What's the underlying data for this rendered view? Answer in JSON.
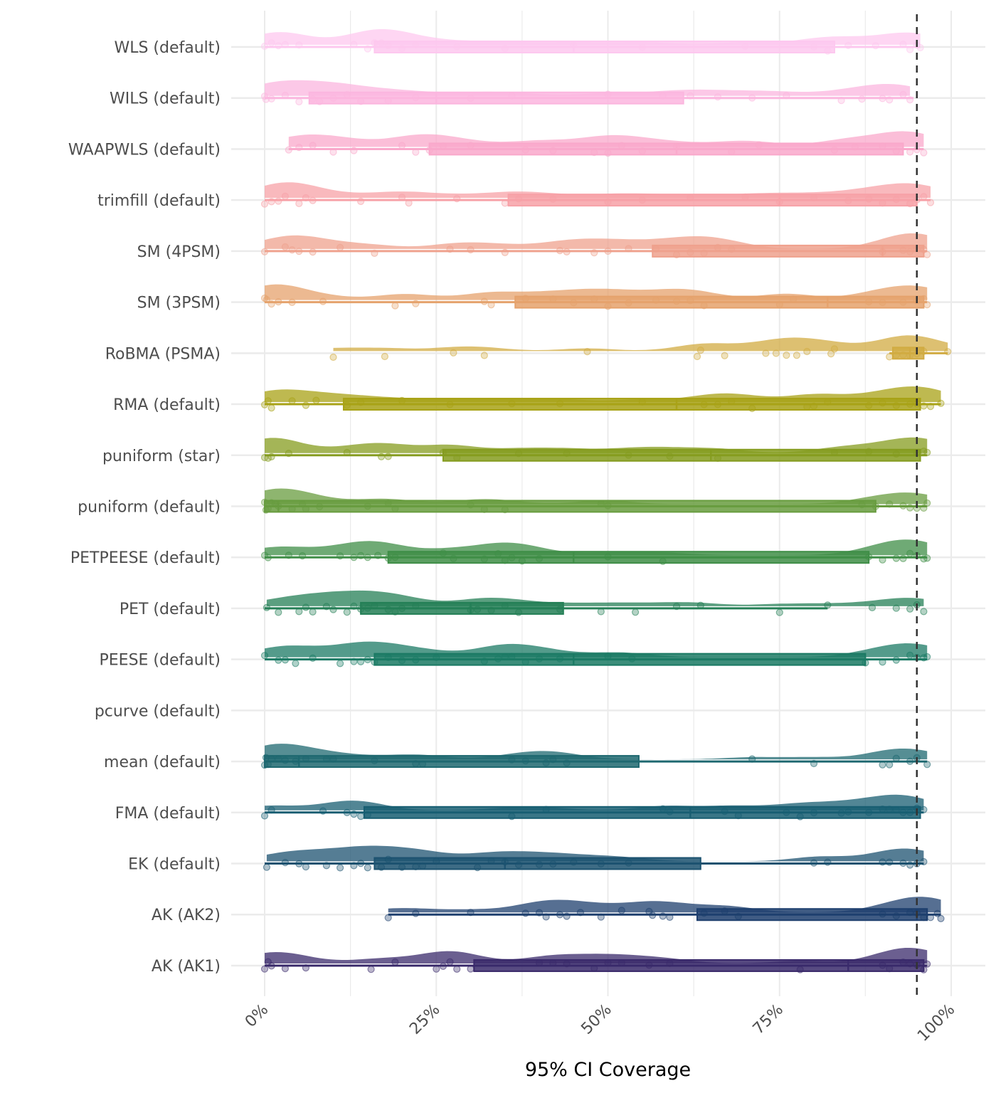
{
  "chart_data": {
    "type": "raincloud",
    "title": "",
    "xlabel": "95% CI Coverage",
    "ylabel": "",
    "xlim": [
      0,
      1
    ],
    "x_ticks": [
      0,
      0.25,
      0.5,
      0.75,
      1.0
    ],
    "x_tick_labels": [
      "0%",
      "25%",
      "50%",
      "75%",
      "100%"
    ],
    "reference_line": {
      "x": 0.95,
      "style": "dashed",
      "color": "#333333"
    },
    "grid": true,
    "legend": "none",
    "categories": [
      "WLS (default)",
      "WILS (default)",
      "WAAPWLS (default)",
      "trimfill (default)",
      "SM (4PSM)",
      "SM (3PSM)",
      "RoBMA (PSMA)",
      "RMA (default)",
      "puniform (star)",
      "puniform (default)",
      "PETPEESE (default)",
      "PET (default)",
      "PEESE (default)",
      "pcurve (default)",
      "mean (default)",
      "FMA (default)",
      "EK (default)",
      "AK (AK2)",
      "AK (AK1)"
    ],
    "series": [
      {
        "name": "WLS (default)",
        "color": "#FDC8EF",
        "min": 0.0,
        "q1": 0.16,
        "median": 0.45,
        "q3": 0.83,
        "max": 0.955,
        "points": [
          0,
          0.01,
          0.02,
          0.03,
          0.05,
          0.13,
          0.15,
          0.16,
          0.17,
          0.18,
          0.2,
          0.22,
          0.28,
          0.35,
          0.45,
          0.55,
          0.7,
          0.8,
          0.82,
          0.85,
          0.89,
          0.93,
          0.94,
          0.95,
          0.955
        ]
      },
      {
        "name": "WILS (default)",
        "color": "#FBB6DF",
        "min": 0.0,
        "q1": 0.065,
        "median": 0.25,
        "q3": 0.61,
        "max": 0.945,
        "points": [
          0,
          0.002,
          0.01,
          0.03,
          0.05,
          0.07,
          0.08,
          0.1,
          0.12,
          0.14,
          0.18,
          0.22,
          0.3,
          0.36,
          0.5,
          0.58,
          0.62,
          0.66,
          0.71,
          0.76,
          0.84,
          0.87,
          0.9,
          0.91,
          0.93,
          0.94
        ]
      },
      {
        "name": "WAAPWLS (default)",
        "color": "#F9A8CB",
        "min": 0.035,
        "q1": 0.24,
        "median": 0.6,
        "q3": 0.93,
        "max": 0.96,
        "points": [
          0.035,
          0.05,
          0.07,
          0.1,
          0.13,
          0.2,
          0.22,
          0.24,
          0.26,
          0.3,
          0.38,
          0.42,
          0.48,
          0.5,
          0.52,
          0.55,
          0.6,
          0.68,
          0.72,
          0.83,
          0.86,
          0.9,
          0.92,
          0.94,
          0.95,
          0.96
        ]
      },
      {
        "name": "trimfill (default)",
        "color": "#F7A1A7",
        "min": 0.0,
        "q1": 0.355,
        "median": 0.75,
        "q3": 0.95,
        "max": 0.97,
        "points": [
          0,
          0.01,
          0.02,
          0.03,
          0.05,
          0.06,
          0.07,
          0.14,
          0.2,
          0.21,
          0.28,
          0.35,
          0.37,
          0.42,
          0.5,
          0.55,
          0.62,
          0.7,
          0.75,
          0.8,
          0.85,
          0.88,
          0.9,
          0.92,
          0.94,
          0.95,
          0.96,
          0.97
        ]
      },
      {
        "name": "SM (4PSM)",
        "color": "#EFA18D",
        "min": 0.0,
        "q1": 0.565,
        "median": 0.9,
        "q3": 0.96,
        "max": 0.965,
        "points": [
          0,
          0.03,
          0.04,
          0.05,
          0.07,
          0.11,
          0.16,
          0.27,
          0.3,
          0.35,
          0.43,
          0.44,
          0.48,
          0.5,
          0.53,
          0.57,
          0.6,
          0.62,
          0.64,
          0.66,
          0.68,
          0.9,
          0.93,
          0.94,
          0.95,
          0.96,
          0.965
        ]
      },
      {
        "name": "SM (3PSM)",
        "color": "#E5A26C",
        "min": 0.0,
        "q1": 0.365,
        "median": 0.82,
        "q3": 0.96,
        "max": 0.965,
        "points": [
          0,
          0.003,
          0.01,
          0.02,
          0.04,
          0.085,
          0.19,
          0.22,
          0.32,
          0.33,
          0.38,
          0.42,
          0.45,
          0.48,
          0.5,
          0.53,
          0.57,
          0.6,
          0.62,
          0.64,
          0.75,
          0.77,
          0.88,
          0.9,
          0.93,
          0.95,
          0.96,
          0.965
        ]
      },
      {
        "name": "RoBMA (PSMA)",
        "color": "#D1AB42",
        "min": 0.91,
        "q1": 0.915,
        "median": 0.94,
        "q3": 0.96,
        "max": 0.995,
        "points": [
          0.1,
          0.175,
          0.275,
          0.32,
          0.47,
          0.63,
          0.635,
          0.67,
          0.73,
          0.745,
          0.76,
          0.775,
          0.79,
          0.825,
          0.83,
          0.91,
          0.92,
          0.93,
          0.94,
          0.95,
          0.96,
          0.995
        ]
      },
      {
        "name": "RMA (default)",
        "color": "#A8A216",
        "min": 0.0,
        "q1": 0.115,
        "median": 0.6,
        "q3": 0.955,
        "max": 0.985,
        "points": [
          0,
          0.005,
          0.01,
          0.04,
          0.06,
          0.075,
          0.12,
          0.14,
          0.2,
          0.27,
          0.36,
          0.43,
          0.55,
          0.64,
          0.66,
          0.68,
          0.71,
          0.79,
          0.8,
          0.82,
          0.88,
          0.9,
          0.92,
          0.94,
          0.95,
          0.96,
          0.97,
          0.985
        ]
      },
      {
        "name": "puniform (star)",
        "color": "#859C1F",
        "min": 0.0,
        "q1": 0.26,
        "median": 0.65,
        "q3": 0.955,
        "max": 0.965,
        "points": [
          0,
          0.005,
          0.01,
          0.035,
          0.12,
          0.17,
          0.18,
          0.26,
          0.28,
          0.37,
          0.44,
          0.53,
          0.59,
          0.66,
          0.83,
          0.88,
          0.92,
          0.95,
          0.96,
          0.965
        ]
      },
      {
        "name": "puniform (default)",
        "color": "#689C3F",
        "min": 0.0,
        "q1": 0.0,
        "median": 0.02,
        "q3": 0.89,
        "max": 0.965,
        "points": [
          0,
          0.002,
          0.005,
          0.01,
          0.015,
          0.02,
          0.04,
          0.055,
          0.06,
          0.08,
          0.15,
          0.18,
          0.19,
          0.3,
          0.32,
          0.35,
          0.49,
          0.5,
          0.87,
          0.89,
          0.91,
          0.93,
          0.94,
          0.95,
          0.96,
          0.965
        ]
      },
      {
        "name": "PETPEESE (default)",
        "color": "#3F8E47",
        "min": 0.0,
        "q1": 0.18,
        "median": 0.45,
        "q3": 0.88,
        "max": 0.965,
        "points": [
          0,
          0.005,
          0.035,
          0.055,
          0.11,
          0.13,
          0.14,
          0.15,
          0.165,
          0.18,
          0.19,
          0.26,
          0.275,
          0.32,
          0.34,
          0.35,
          0.36,
          0.375,
          0.4,
          0.5,
          0.58,
          0.88,
          0.9,
          0.92,
          0.93,
          0.94,
          0.95,
          0.96,
          0.965
        ]
      },
      {
        "name": "PET (default)",
        "color": "#247F56",
        "min": 0.0,
        "q1": 0.14,
        "median": 0.3,
        "q3": 0.435,
        "max": 0.82,
        "points": [
          0.003,
          0.02,
          0.05,
          0.06,
          0.07,
          0.09,
          0.1,
          0.12,
          0.13,
          0.14,
          0.15,
          0.16,
          0.18,
          0.19,
          0.2,
          0.22,
          0.3,
          0.31,
          0.33,
          0.35,
          0.37,
          0.43,
          0.49,
          0.54,
          0.6,
          0.635,
          0.75,
          0.82,
          0.885,
          0.92,
          0.94,
          0.95,
          0.96
        ]
      },
      {
        "name": "PEESE (default)",
        "color": "#1B7A64",
        "min": 0.0,
        "q1": 0.16,
        "median": 0.45,
        "q3": 0.875,
        "max": 0.965,
        "points": [
          0,
          0.02,
          0.03,
          0.045,
          0.07,
          0.11,
          0.13,
          0.14,
          0.15,
          0.16,
          0.18,
          0.2,
          0.22,
          0.25,
          0.32,
          0.34,
          0.35,
          0.36,
          0.38,
          0.4,
          0.43,
          0.5,
          0.535,
          0.875,
          0.9,
          0.92,
          0.94,
          0.95,
          0.96,
          0.965
        ]
      },
      {
        "name": "pcurve (default)",
        "color": "#1A6E6E",
        "min": null,
        "q1": null,
        "median": null,
        "q3": null,
        "max": null,
        "points": []
      },
      {
        "name": "mean (default)",
        "color": "#1E6870",
        "min": 0.0,
        "q1": 0.0,
        "median": 0.05,
        "q3": 0.545,
        "max": 0.965,
        "points": [
          0,
          0.002,
          0.005,
          0.01,
          0.02,
          0.03,
          0.045,
          0.06,
          0.09,
          0.1,
          0.16,
          0.22,
          0.23,
          0.36,
          0.38,
          0.41,
          0.42,
          0.44,
          0.71,
          0.8,
          0.9,
          0.91,
          0.92,
          0.94,
          0.95,
          0.965
        ]
      },
      {
        "name": "FMA (default)",
        "color": "#185E72",
        "min": 0.0,
        "q1": 0.145,
        "median": 0.62,
        "q3": 0.955,
        "max": 0.96,
        "points": [
          0,
          0.01,
          0.085,
          0.12,
          0.13,
          0.14,
          0.15,
          0.36,
          0.41,
          0.58,
          0.59,
          0.67,
          0.69,
          0.76,
          0.78,
          0.8,
          0.84,
          0.85,
          0.88,
          0.9,
          0.91,
          0.92,
          0.93,
          0.94,
          0.95,
          0.96
        ]
      },
      {
        "name": "EK (default)",
        "color": "#1C5270",
        "min": 0.0,
        "q1": 0.16,
        "median": 0.35,
        "q3": 0.635,
        "max": 0.96,
        "points": [
          0.003,
          0.03,
          0.05,
          0.06,
          0.09,
          0.11,
          0.13,
          0.14,
          0.15,
          0.17,
          0.18,
          0.2,
          0.22,
          0.23,
          0.25,
          0.31,
          0.33,
          0.35,
          0.37,
          0.4,
          0.42,
          0.45,
          0.49,
          0.53,
          0.8,
          0.82,
          0.9,
          0.91,
          0.93,
          0.94,
          0.95,
          0.96
        ]
      },
      {
        "name": "AK (AK2)",
        "color": "#1E3F6E",
        "min": 0.18,
        "q1": 0.63,
        "median": 0.95,
        "q3": 0.965,
        "max": 0.985,
        "points": [
          0.18,
          0.22,
          0.3,
          0.38,
          0.4,
          0.41,
          0.43,
          0.44,
          0.46,
          0.49,
          0.52,
          0.56,
          0.565,
          0.58,
          0.59,
          0.64,
          0.67,
          0.69,
          0.9,
          0.92,
          0.94,
          0.95,
          0.96,
          0.97,
          0.98,
          0.985
        ]
      },
      {
        "name": "AK (AK1)",
        "color": "#3A2A6B",
        "min": 0.0,
        "q1": 0.305,
        "median": 0.85,
        "q3": 0.96,
        "max": 0.965,
        "points": [
          0,
          0.005,
          0.01,
          0.03,
          0.06,
          0.155,
          0.19,
          0.25,
          0.26,
          0.27,
          0.28,
          0.3,
          0.4,
          0.42,
          0.44,
          0.48,
          0.5,
          0.52,
          0.56,
          0.59,
          0.78,
          0.9,
          0.91,
          0.93,
          0.94,
          0.95,
          0.96,
          0.965
        ]
      }
    ]
  }
}
